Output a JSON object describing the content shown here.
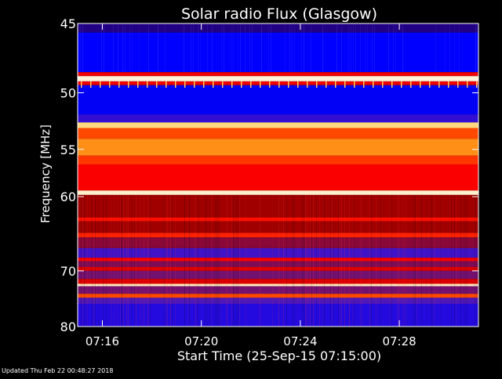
{
  "footer": {
    "updated": "Updated Thu Feb 22 00:48:27 2018"
  },
  "chart_data": {
    "type": "heatmap",
    "title": "Solar radio Flux (Glasgow)",
    "xlabel": "Start Time (25-Sep-15 07:15:00)",
    "ylabel": "Frequency [MHz]",
    "x_start_minutes": 0,
    "x_range_minutes": [
      0,
      16.2
    ],
    "x_ticks": [
      {
        "minute": 1,
        "label": "07:16"
      },
      {
        "minute": 5,
        "label": "07:20"
      },
      {
        "minute": 9,
        "label": "07:24"
      },
      {
        "minute": 13,
        "label": "07:28"
      }
    ],
    "y_scale": "reciprocal",
    "ylim": [
      45,
      80
    ],
    "y_ticks": [
      {
        "mhz": 45,
        "label": "45"
      },
      {
        "mhz": 50,
        "label": "50"
      },
      {
        "mhz": 55,
        "label": "55"
      },
      {
        "mhz": 60,
        "label": "60"
      },
      {
        "mhz": 70,
        "label": "70"
      },
      {
        "mhz": 80,
        "label": "80"
      }
    ],
    "colormap": [
      "#000000",
      "#22008a",
      "#0000ff",
      "#5a1ab0",
      "#a00000",
      "#ff0000",
      "#ff7a00",
      "#ffd060",
      "#ffffff"
    ],
    "frequency_bands": [
      {
        "from_mhz": 45.0,
        "to_mhz": 45.6,
        "level": 0.12
      },
      {
        "from_mhz": 45.6,
        "to_mhz": 48.4,
        "level": 0.25
      },
      {
        "from_mhz": 48.4,
        "to_mhz": 48.7,
        "level": 0.6
      },
      {
        "from_mhz": 48.7,
        "to_mhz": 49.1,
        "level": 0.97
      },
      {
        "from_mhz": 49.1,
        "to_mhz": 49.4,
        "level": 0.6
      },
      {
        "from_mhz": 49.4,
        "to_mhz": 51.8,
        "level": 0.24
      },
      {
        "from_mhz": 51.8,
        "to_mhz": 52.5,
        "level": 0.32
      },
      {
        "from_mhz": 52.5,
        "to_mhz": 53.0,
        "level": 0.9
      },
      {
        "from_mhz": 53.0,
        "to_mhz": 54.0,
        "level": 0.7
      },
      {
        "from_mhz": 54.0,
        "to_mhz": 55.6,
        "level": 0.78
      },
      {
        "from_mhz": 55.6,
        "to_mhz": 56.5,
        "level": 0.68
      },
      {
        "from_mhz": 56.5,
        "to_mhz": 59.3,
        "level": 0.62
      },
      {
        "from_mhz": 59.3,
        "to_mhz": 59.8,
        "level": 0.96
      },
      {
        "from_mhz": 59.8,
        "to_mhz": 62.5,
        "level": 0.5
      },
      {
        "from_mhz": 62.5,
        "to_mhz": 63.0,
        "level": 0.64
      },
      {
        "from_mhz": 63.0,
        "to_mhz": 64.5,
        "level": 0.5
      },
      {
        "from_mhz": 64.5,
        "to_mhz": 65.1,
        "level": 0.66
      },
      {
        "from_mhz": 65.1,
        "to_mhz": 66.6,
        "level": 0.46
      },
      {
        "from_mhz": 66.6,
        "to_mhz": 68.0,
        "level": 0.34
      },
      {
        "from_mhz": 68.0,
        "to_mhz": 68.5,
        "level": 0.62
      },
      {
        "from_mhz": 68.5,
        "to_mhz": 69.4,
        "level": 0.44
      },
      {
        "from_mhz": 69.4,
        "to_mhz": 70.0,
        "level": 0.58
      },
      {
        "from_mhz": 70.0,
        "to_mhz": 71.3,
        "level": 0.42
      },
      {
        "from_mhz": 71.3,
        "to_mhz": 72.1,
        "level": 0.58
      },
      {
        "from_mhz": 72.1,
        "to_mhz": 72.5,
        "level": 0.95
      },
      {
        "from_mhz": 72.5,
        "to_mhz": 73.8,
        "level": 0.42
      },
      {
        "from_mhz": 73.8,
        "to_mhz": 74.5,
        "level": 0.7
      },
      {
        "from_mhz": 74.5,
        "to_mhz": 75.6,
        "level": 0.36
      },
      {
        "from_mhz": 75.6,
        "to_mhz": 80.0,
        "level": 0.3
      }
    ]
  }
}
